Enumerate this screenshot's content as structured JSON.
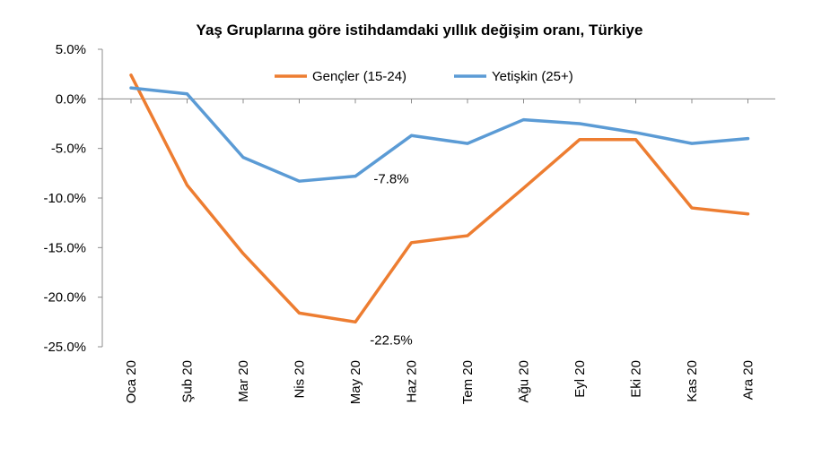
{
  "chart_data": {
    "type": "line",
    "title": "Yaş Gruplarına göre istihdamdaki yıllık değişim oranı, Türkiye",
    "xlabel": "",
    "ylabel": "",
    "categories": [
      "Oca 20",
      "Şub 20",
      "Mar 20",
      "Nis 20",
      "May 20",
      "Haz 20",
      "Tem 20",
      "Ağu 20",
      "Eyl 20",
      "Eki 20",
      "Kas 20",
      "Ara 20"
    ],
    "ylim": [
      -25,
      5
    ],
    "yticks": [
      5,
      0,
      -5,
      -10,
      -15,
      -20,
      -25
    ],
    "ytick_labels": [
      "5.0%",
      "0.0%",
      "-5.0%",
      "-10.0%",
      "-15.0%",
      "-20.0%",
      "-25.0%"
    ],
    "grid": false,
    "legend_position": "top",
    "series": [
      {
        "name": "Gençler (15-24)",
        "color": "#ED7D31",
        "values": [
          2.4,
          -8.7,
          -15.6,
          -21.6,
          -22.5,
          -14.5,
          -13.8,
          -9.0,
          -4.1,
          -4.1,
          -11.0,
          -11.6
        ]
      },
      {
        "name": "Yetişkin (25+)",
        "color": "#5B9BD5",
        "values": [
          1.1,
          0.5,
          -5.9,
          -8.3,
          -7.8,
          -3.7,
          -4.5,
          -2.1,
          -2.5,
          -3.4,
          -4.5,
          -4.0
        ]
      }
    ],
    "annotations": [
      {
        "text": "-7.8%",
        "series": 1,
        "index": 4
      },
      {
        "text": "-22.5%",
        "series": 0,
        "index": 4
      }
    ]
  }
}
